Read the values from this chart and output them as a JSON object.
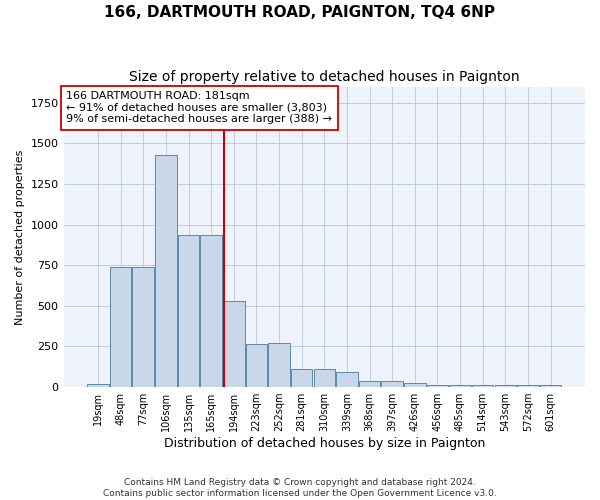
{
  "title": "166, DARTMOUTH ROAD, PAIGNTON, TQ4 6NP",
  "subtitle": "Size of property relative to detached houses in Paignton",
  "xlabel": "Distribution of detached houses by size in Paignton",
  "ylabel": "Number of detached properties",
  "categories": [
    "19sqm",
    "48sqm",
    "77sqm",
    "106sqm",
    "135sqm",
    "165sqm",
    "194sqm",
    "223sqm",
    "252sqm",
    "281sqm",
    "310sqm",
    "339sqm",
    "368sqm",
    "397sqm",
    "426sqm",
    "456sqm",
    "485sqm",
    "514sqm",
    "543sqm",
    "572sqm",
    "601sqm"
  ],
  "values": [
    22,
    740,
    740,
    1430,
    935,
    935,
    530,
    265,
    270,
    110,
    110,
    95,
    40,
    40,
    25,
    15,
    15,
    15,
    15,
    15,
    15
  ],
  "bar_color": "#c8d8e8",
  "bar_edge_color": "#5a8ab0",
  "vline_color": "#cc0000",
  "background_color": "#eef2fa",
  "footer_text": "Contains HM Land Registry data © Crown copyright and database right 2024.\nContains public sector information licensed under the Open Government Licence v3.0.",
  "ylim": [
    0,
    1850
  ],
  "title_fontsize": 11,
  "subtitle_fontsize": 10,
  "annotation_line1": "166 DARTMOUTH ROAD: 181sqm",
  "annotation_line2": "← 91% of detached houses are smaller (3,803)",
  "annotation_line3": "9% of semi-detached houses are larger (388) →"
}
